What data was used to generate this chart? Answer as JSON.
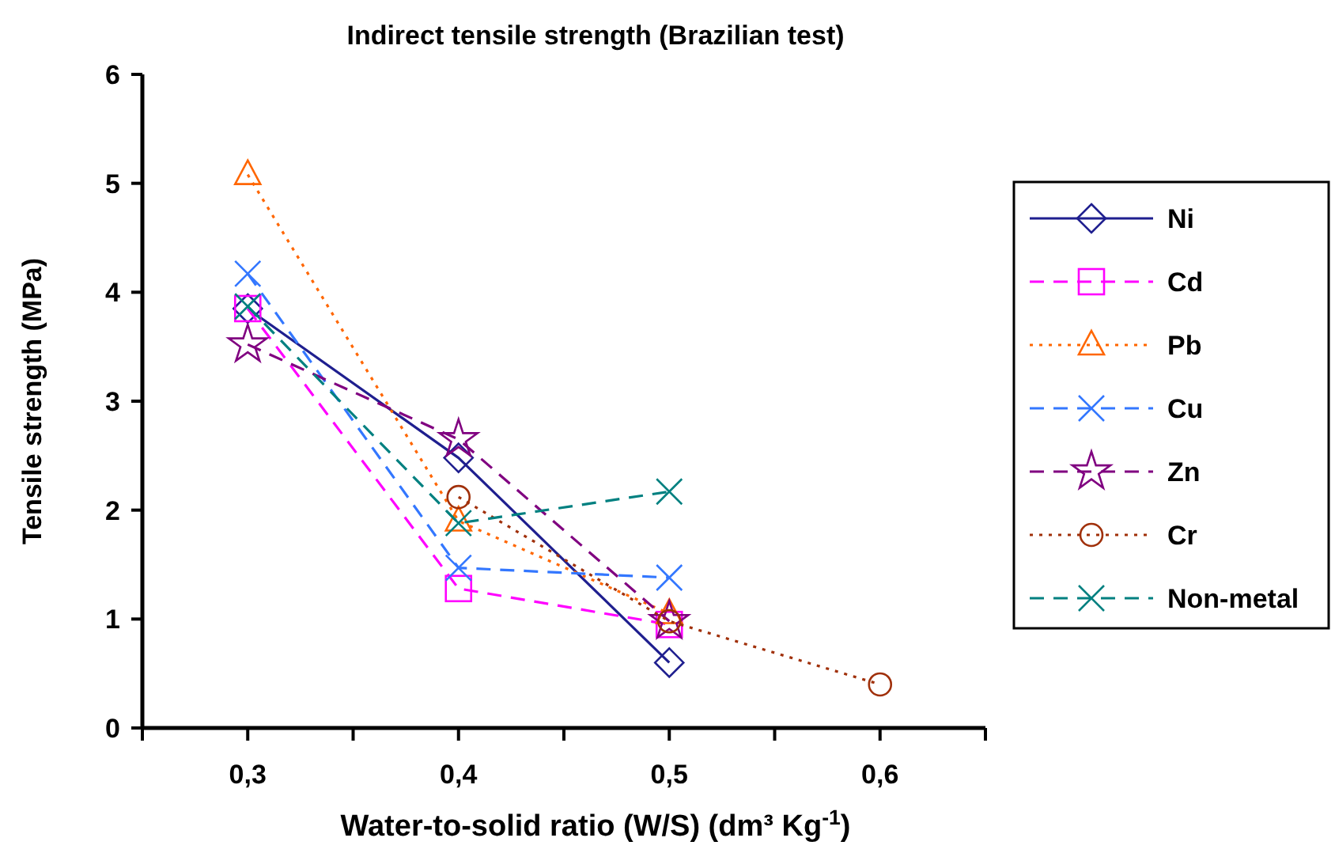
{
  "chart_data": {
    "type": "line",
    "title": "Indirect tensile strength (Brazilian test)",
    "xlabel": "Water-to-solid ratio (W/S) (dm³ Kg$^{-1}$)",
    "ylabel": "Tensile strength (MPa)",
    "xlim": [
      0.25,
      0.65
    ],
    "xticks": [
      {
        "value": 0.25,
        "label": null
      },
      {
        "value": 0.3,
        "label": "0,3"
      },
      {
        "value": 0.35,
        "label": null
      },
      {
        "value": 0.4,
        "label": "0,4"
      },
      {
        "value": 0.45,
        "label": null
      },
      {
        "value": 0.5,
        "label": "0,5"
      },
      {
        "value": 0.55,
        "label": null
      },
      {
        "value": 0.6,
        "label": "0,6"
      },
      {
        "value": 0.65,
        "label": null
      }
    ],
    "ylim": [
      0,
      6
    ],
    "yticks": [
      0,
      1,
      2,
      3,
      4,
      5,
      6
    ],
    "grid": false,
    "legend": "right",
    "series": [
      {
        "name": "Ni",
        "color": "#1f1f8f",
        "x": [
          0.3,
          0.4,
          0.5
        ],
        "values": [
          3.85,
          2.48,
          0.6
        ],
        "marker": "diamond",
        "line_style": "solid"
      },
      {
        "name": "Cd",
        "color": "#ff00ff",
        "x": [
          0.3,
          0.4,
          0.5
        ],
        "values": [
          3.85,
          1.28,
          0.95
        ],
        "marker": "square",
        "line_style": "dashed"
      },
      {
        "name": "Pb",
        "color": "#ff6600",
        "x": [
          0.3,
          0.4,
          0.5
        ],
        "values": [
          5.08,
          1.9,
          1.05
        ],
        "marker": "triangle",
        "line_style": "dotted"
      },
      {
        "name": "Cu",
        "color": "#3377ff",
        "x": [
          0.3,
          0.4,
          0.5
        ],
        "values": [
          4.17,
          1.47,
          1.38
        ],
        "marker": "cross",
        "line_style": "dashed"
      },
      {
        "name": "Zn",
        "color": "#800080",
        "x": [
          0.3,
          0.4,
          0.5
        ],
        "values": [
          3.52,
          2.65,
          0.98
        ],
        "marker": "star",
        "line_style": "dashed"
      },
      {
        "name": "Cr",
        "color": "#a0300a",
        "x": [
          0.4,
          0.5,
          0.6
        ],
        "values": [
          2.12,
          0.98,
          0.4
        ],
        "marker": "circle",
        "line_style": "dotted"
      },
      {
        "name": "Non-metal",
        "color": "#008080",
        "x": [
          0.3,
          0.4,
          0.5
        ],
        "values": [
          3.87,
          1.88,
          2.17
        ],
        "marker": "cross",
        "line_style": "dashed"
      }
    ]
  }
}
